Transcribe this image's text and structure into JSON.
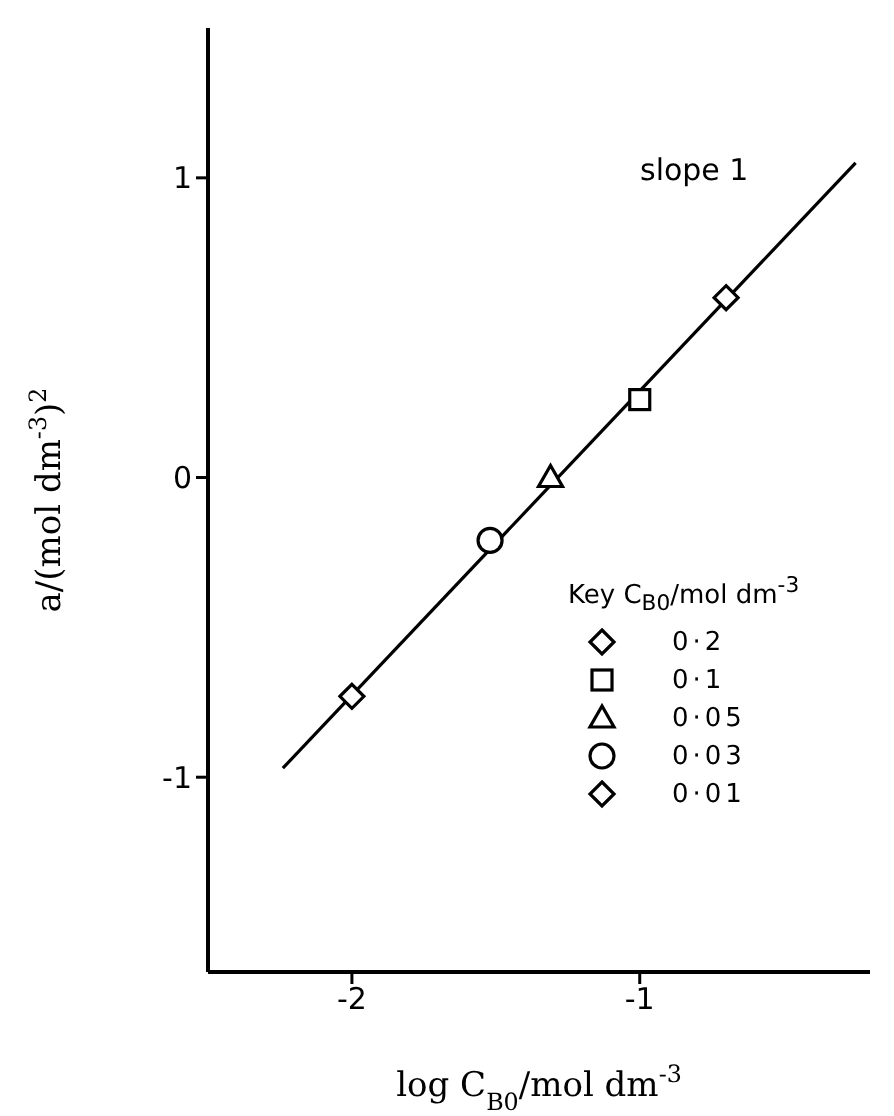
{
  "chart_data": {
    "type": "scatter",
    "xlabel": "log C$_{B0}$/mol dm$^{-3}$",
    "ylabel": "a/(mol dm$^{-3}$)$^{2}$",
    "legend_title": "Key  C$_{B0}$/mol dm$^{-3}$",
    "annotations": [
      "slope 1"
    ],
    "xlim": [
      -2.5,
      -0.2
    ],
    "xticks": [
      -2,
      -1
    ],
    "ylim": [
      -1.65,
      1.5
    ],
    "yticks": [
      -1,
      0,
      1
    ],
    "grid": false,
    "legend": "bottom right",
    "series": [
      {
        "name": "0·2",
        "color": "#000000",
        "marker": "diamond",
        "x": [
          -0.7
        ],
        "values": [
          0.6
        ]
      },
      {
        "name": "0·1",
        "color": "#000000",
        "marker": "square",
        "x": [
          -1.0
        ],
        "values": [
          0.26
        ]
      },
      {
        "name": "0·05",
        "color": "#000000",
        "marker": "triangle",
        "x": [
          -1.31
        ],
        "values": [
          0.0
        ]
      },
      {
        "name": "0·03",
        "color": "#000000",
        "marker": "circle",
        "x": [
          -1.52
        ],
        "values": [
          -0.21
        ]
      },
      {
        "name": "0·01",
        "color": "#000000",
        "marker": "diamond",
        "x": [
          -2.0
        ],
        "values": [
          -0.73
        ]
      },
      {
        "type": "line",
        "color": "#000000",
        "marker": "none",
        "line_style": "solid",
        "x": [
          -2.24,
          -0.25
        ],
        "values": [
          -0.97,
          1.05
        ]
      }
    ]
  }
}
